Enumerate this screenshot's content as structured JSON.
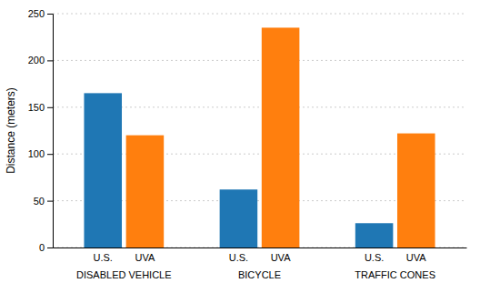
{
  "chart_data": {
    "type": "bar",
    "ylabel": "Distance (meters)",
    "categories": [
      "DISABLED VEHICLE",
      "BICYCLE",
      "TRAFFIC CONES"
    ],
    "series": [
      {
        "name": "U.S.",
        "values": [
          165,
          62,
          26
        ]
      },
      {
        "name": "UVA",
        "values": [
          120,
          235,
          122
        ]
      }
    ],
    "ylim": [
      0,
      250
    ],
    "yticks": [
      0,
      50,
      100,
      150,
      200,
      250
    ],
    "grid": true
  }
}
